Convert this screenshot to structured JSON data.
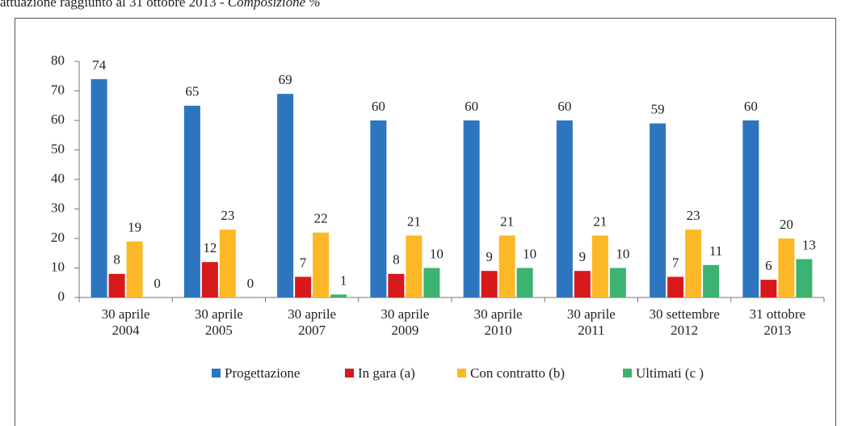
{
  "chart_data": {
    "type": "bar",
    "title": "attuazione raggiunto al 31 ottobre 2013 - ",
    "title_italic": "Composizione %",
    "categories": [
      [
        "30 aprile",
        "2004"
      ],
      [
        "30 aprile",
        "2005"
      ],
      [
        "30 aprile",
        "2007"
      ],
      [
        "30 aprile",
        "2009"
      ],
      [
        "30 aprile",
        "2010"
      ],
      [
        "30 aprile",
        "2011"
      ],
      [
        "30 settembre",
        "2012"
      ],
      [
        "31 ottobre",
        "2013"
      ]
    ],
    "series": [
      {
        "name": "Progettazione",
        "color": "#2e75c0",
        "values": [
          74,
          65,
          69,
          60,
          60,
          60,
          59,
          60
        ]
      },
      {
        "name": "In gara (a)",
        "color": "#d7191c",
        "values": [
          8,
          12,
          7,
          8,
          9,
          9,
          7,
          6
        ]
      },
      {
        "name": "Con contratto (b)",
        "color": "#fdb827",
        "values": [
          19,
          23,
          22,
          21,
          21,
          21,
          23,
          20
        ]
      },
      {
        "name": "Ultimati  (c )",
        "color": "#3cb371",
        "values": [
          0,
          0,
          1,
          10,
          10,
          10,
          11,
          13
        ]
      }
    ],
    "ylim": [
      0,
      80
    ],
    "yticks": [
      0,
      10,
      20,
      30,
      40,
      50,
      60,
      70,
      80
    ],
    "grid": false,
    "legend": "bottom"
  }
}
